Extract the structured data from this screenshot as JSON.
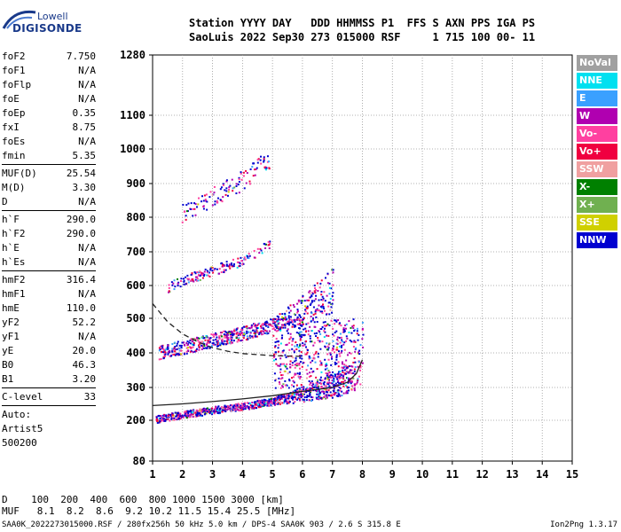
{
  "logo": {
    "line1": "Lowell",
    "line2": "DIGISONDE"
  },
  "header": {
    "row1": "Station YYYY DAY   DDD HHMMSS P1  FFS S AXN PPS IGA PS",
    "row2": "SaoLuis 2022 Sep30 273 015000 RSF     1 715 100 00- 11"
  },
  "params": {
    "group1": [
      [
        "foF2",
        "7.750"
      ],
      [
        "foF1",
        "N/A"
      ],
      [
        "foFlp",
        "N/A"
      ],
      [
        "foE",
        "N/A"
      ],
      [
        "foEp",
        "0.35"
      ],
      [
        "fxI",
        "8.75"
      ],
      [
        "foEs",
        "N/A"
      ],
      [
        "fmin",
        "5.35"
      ]
    ],
    "group2": [
      [
        "MUF(D)",
        "25.54"
      ],
      [
        "M(D)",
        "3.30"
      ],
      [
        "D",
        "N/A"
      ]
    ],
    "group3": [
      [
        "h`F",
        "290.0"
      ],
      [
        "h`F2",
        "290.0"
      ],
      [
        "h`E",
        "N/A"
      ],
      [
        "h`Es",
        "N/A"
      ]
    ],
    "group4": [
      [
        "hmF2",
        "316.4"
      ],
      [
        "hmF1",
        "N/A"
      ],
      [
        "hmE",
        "110.0"
      ],
      [
        "yF2",
        "52.2"
      ],
      [
        "yF1",
        "N/A"
      ],
      [
        "yE",
        "20.0"
      ],
      [
        "B0",
        "46.3"
      ],
      [
        "B1",
        "3.20"
      ]
    ],
    "group5": [
      [
        "C-level",
        "33"
      ]
    ],
    "auto": [
      "Auto:",
      "Artist5",
      "500200"
    ]
  },
  "legend": [
    {
      "label": "NoVal",
      "color": "#a0a0a0"
    },
    {
      "label": "NNE",
      "color": "#00e0f0"
    },
    {
      "label": "E",
      "color": "#3aa0ff"
    },
    {
      "label": "W",
      "color": "#b000b0"
    },
    {
      "label": "Vo-",
      "color": "#ff40a0"
    },
    {
      "label": "Vo+",
      "color": "#f00040"
    },
    {
      "label": "SSW",
      "color": "#f0a0a0"
    },
    {
      "label": "X-",
      "color": "#008000"
    },
    {
      "label": "X+",
      "color": "#70b050"
    },
    {
      "label": "SSE",
      "color": "#d0d000"
    },
    {
      "label": "NNW",
      "color": "#0000d0"
    }
  ],
  "bottom": {
    "d_row": "D    100  200  400  600  800 1000 1500 3000 [km]",
    "muf_row": "MUF   8.1  8.2  8.6  9.2 10.2 11.5 15.4 25.5 [MHz]",
    "footer_left": "SAA0K_2022273015000.RSF / 280fx256h 50 kHz 5.0 km / DPS-4 SAA0K 903 / 2.6 S 315.8 E",
    "footer_right": "Ion2Png 1.3.17"
  },
  "chart_data": {
    "type": "scatter",
    "xlim": [
      1,
      15
    ],
    "x_ticks": [
      "1",
      "2",
      "3",
      "4",
      "5",
      "6",
      "7",
      "8",
      "9",
      "10",
      "11",
      "12",
      "13",
      "14",
      "15"
    ],
    "y_ticks": [
      "80",
      "200",
      "300",
      "400",
      "500",
      "600",
      "700",
      "800",
      "900",
      "1000",
      "1100",
      "1280"
    ],
    "y_tick_values": [
      80,
      200,
      300,
      400,
      500,
      600,
      700,
      800,
      900,
      1000,
      1100,
      1280
    ],
    "grid": "dotted",
    "traces": [
      {
        "name": "o-trace F2",
        "points": [
          [
            1.1,
            200
          ],
          [
            2,
            215
          ],
          [
            3,
            228
          ],
          [
            4,
            240
          ],
          [
            5,
            255
          ],
          [
            6,
            272
          ],
          [
            7,
            292
          ],
          [
            7.75,
            320
          ]
        ]
      },
      {
        "name": "2nd hop",
        "points": [
          [
            1.2,
            395
          ],
          [
            2,
            410
          ],
          [
            3,
            430
          ],
          [
            4,
            450
          ],
          [
            5,
            475
          ],
          [
            6,
            510
          ],
          [
            7,
            560
          ]
        ]
      },
      {
        "name": "3rd hop",
        "points": [
          [
            1.5,
            590
          ],
          [
            2,
            610
          ],
          [
            3,
            640
          ],
          [
            4,
            670
          ],
          [
            4.9,
            720
          ]
        ]
      },
      {
        "name": "4th hop",
        "points": [
          [
            1.9,
            795
          ],
          [
            2.5,
            820
          ],
          [
            3.2,
            860
          ],
          [
            4,
            900
          ],
          [
            4.9,
            960
          ]
        ]
      }
    ],
    "curves": [
      {
        "style": "solid",
        "points": [
          [
            1,
            245
          ],
          [
            2,
            250
          ],
          [
            3,
            257
          ],
          [
            4,
            265
          ],
          [
            5,
            275
          ],
          [
            6,
            288
          ],
          [
            7,
            300
          ],
          [
            7.5,
            315
          ],
          [
            7.8,
            340
          ],
          [
            8,
            380
          ]
        ]
      },
      {
        "style": "dashed",
        "points": [
          [
            1,
            545
          ],
          [
            1.5,
            490
          ],
          [
            2,
            455
          ],
          [
            2.5,
            432
          ],
          [
            3,
            415
          ],
          [
            3.5,
            405
          ],
          [
            4,
            398
          ],
          [
            5,
            392
          ],
          [
            6,
            390
          ]
        ]
      }
    ]
  }
}
